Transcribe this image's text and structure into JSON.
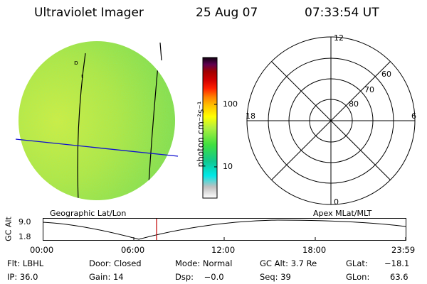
{
  "header": {
    "instrument": "Ultraviolet Imager",
    "date": "25 Aug 07",
    "time": "07:33:54 UT"
  },
  "colorbar": {
    "unit_label": "photon cm⁻²s⁻¹",
    "ticks": [
      "100",
      "10"
    ],
    "colors": [
      "#ffffff",
      "#c8c8c8",
      "#00e0e0",
      "#00c0a0",
      "#40e040",
      "#a0f040",
      "#ffff00",
      "#ffd000",
      "#ff9000",
      "#ff2000",
      "#d00000",
      "#a00000",
      "#600060",
      "#200020"
    ]
  },
  "polar_plot": {
    "labels": {
      "top": "12",
      "bottom": "0",
      "left": "18",
      "right": "6"
    },
    "rings": [
      "60",
      "70",
      "80"
    ]
  },
  "projection_labels": {
    "left": "Geographic Lat/Lon",
    "right": "Apex MLat/MLT"
  },
  "timeline": {
    "axis_label": "GC Alt",
    "y_ticks": [
      "9.0",
      "1.8"
    ],
    "x_ticks": [
      "00:00",
      "06:00",
      "12:00",
      "18:00",
      "23:59"
    ],
    "marker_color": "#c00000"
  },
  "status": {
    "row1": {
      "filter": "Flt: LBHL",
      "door": "Door: Closed",
      "mode": "Mode: Normal",
      "gc_alt": "GC Alt: 3.7 Re",
      "glat_label": "GLat:",
      "glat_value": "−18.1"
    },
    "row2": {
      "ip": "IP: 36.0",
      "gain": "Gain: 14",
      "dsp": "Dsp:    −0.0",
      "seq": "Seq: 39",
      "glon_label": "GLon:",
      "glon_value": "63.6"
    }
  }
}
